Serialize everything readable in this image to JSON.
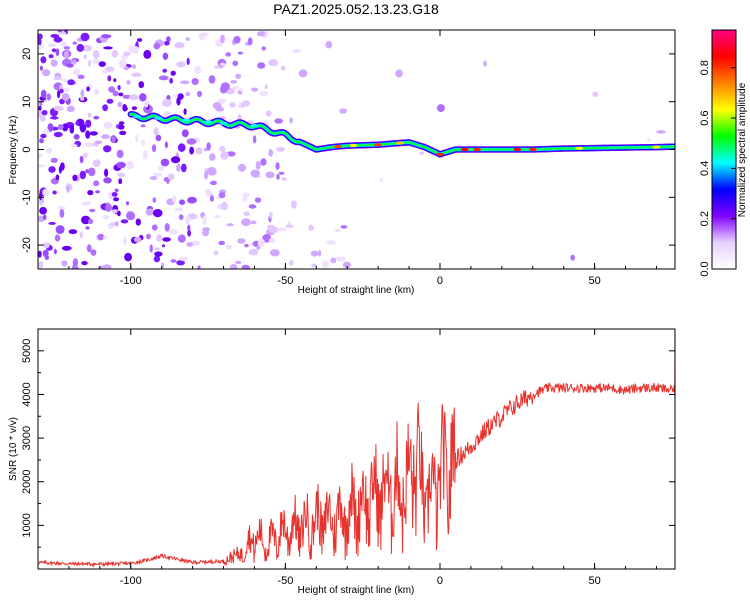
{
  "title": "PAZ1.2025.052.13.23.G18",
  "chart_data": [
    {
      "type": "heatmap",
      "xlabel": "Height of straight line (km)",
      "ylabel": "Frequency (Hz)",
      "xlim": [
        -130,
        76
      ],
      "ylim": [
        -25,
        25
      ],
      "xticks": [
        -100,
        -50,
        0,
        50
      ],
      "yticks": [
        -20,
        -10,
        0,
        10,
        20
      ],
      "ridge": {
        "x": [
          -100,
          -90,
          -80,
          -70,
          -60,
          -50,
          -45,
          -40,
          -35,
          -30,
          -20,
          -10,
          -5,
          0,
          5,
          10,
          20,
          30,
          40,
          50,
          60,
          70,
          76
        ],
        "y": [
          7,
          6.5,
          6,
          5.5,
          5,
          3,
          1.5,
          0,
          0.5,
          0.8,
          1,
          1.5,
          0.5,
          -1,
          0,
          0,
          0,
          0,
          0.2,
          0.3,
          0.4,
          0.5,
          0.6
        ]
      },
      "colorbar": {
        "label": "Normalized spectral amplitude",
        "range": [
          0,
          0.95
        ],
        "ticks": [
          "0.0",
          "0.2",
          "0.4",
          "0.6",
          "0.8"
        ],
        "colors": [
          "#ffffff",
          "#e8d0ff",
          "#8000ff",
          "#0000ff",
          "#00ffff",
          "#00ff00",
          "#ffff00",
          "#ff8000",
          "#ff0000",
          "#ff0080"
        ]
      }
    },
    {
      "type": "line",
      "xlabel": "Height of straight line (km)",
      "ylabel": "SNR (10 * v/v)",
      "xlim": [
        -130,
        76
      ],
      "ylim": [
        0,
        5500
      ],
      "xticks": [
        -100,
        -50,
        0,
        50
      ],
      "yticks": [
        1000,
        2000,
        3000,
        4000,
        5000
      ],
      "color": "#e8322e",
      "series": [
        {
          "x": [
            -130,
            -120,
            -110,
            -100,
            -95,
            -90,
            -80,
            -70,
            -65,
            -60,
            -55,
            -50,
            -45,
            -40,
            -35,
            -30,
            -25,
            -20,
            -15,
            -10,
            -8,
            -5,
            0,
            5,
            10,
            15,
            20,
            25,
            30,
            35,
            40,
            45,
            50,
            55,
            60,
            65,
            70,
            76
          ],
          "y": [
            150,
            120,
            110,
            130,
            200,
            300,
            150,
            180,
            350,
            700,
            600,
            900,
            950,
            1100,
            1100,
            1300,
            1500,
            1700,
            1800,
            1900,
            2600,
            1500,
            2000,
            2500,
            2800,
            3200,
            3500,
            3800,
            4000,
            4150,
            4150,
            4150,
            4150,
            4150,
            4100,
            4150,
            4150,
            4100
          ]
        }
      ]
    }
  ]
}
